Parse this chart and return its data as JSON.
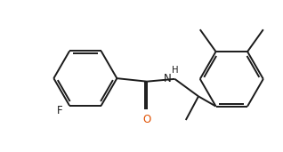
{
  "background_color": "#ffffff",
  "line_color": "#1a1a1a",
  "text_color": "#1a1a1a",
  "F_color": "#1a1a1a",
  "O_color": "#e05000",
  "N_color": "#1a1a1a",
  "line_width": 1.4,
  "font_size": 8.5,
  "label_F": "F",
  "label_O": "O",
  "label_H": "H",
  "label_N": "N"
}
